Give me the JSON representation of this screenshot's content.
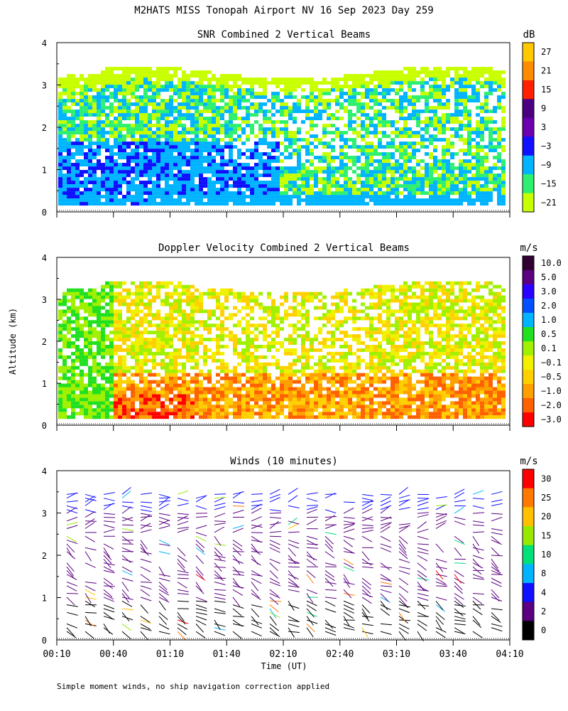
{
  "figure": {
    "title": "M2HATS MISS Tonopah Airport NV  16 Sep 2023 Day 259",
    "shared_ylabel": "Altitude (km)",
    "shared_xlabel": "Time (UT)",
    "footnote": "Simple moment winds, no ship navigation correction applied"
  },
  "chart_data": [
    {
      "type": "heatmap",
      "title": "SNR Combined 2 Vertical Beams",
      "colorbar_unit": "dB",
      "colorbar_labels": [
        "27",
        "21",
        "15",
        "9",
        "3",
        "−3",
        "−9",
        "−15",
        "−21"
      ],
      "colorbar_colors": [
        "#ffc800",
        "#ff8c00",
        "#ff2000",
        "#4b0082",
        "#6a00b0",
        "#1010ff",
        "#00b4ff",
        "#2ef070",
        "#c8ff00"
      ],
      "ylim": [
        0,
        4
      ],
      "yticks": [
        0,
        1,
        2,
        3,
        4
      ],
      "xlim": [
        "00:10",
        "04:10"
      ],
      "description_values": "approx. SNR -21 to 27 dB, data from ~0.15 to ~3.3 km"
    },
    {
      "type": "heatmap",
      "title": "Doppler Velocity Combined 2 Vertical Beams",
      "colorbar_unit": "m/s",
      "colorbar_labels": [
        "10.0",
        "5.0",
        "3.0",
        "2.0",
        "1.0",
        "0.5",
        "0.1",
        "−0.1",
        "−0.5",
        "−1.0",
        "−2.0",
        "−3.0"
      ],
      "colorbar_colors": [
        "#300030",
        "#5a0080",
        "#2a00ff",
        "#0050ff",
        "#00b4ff",
        "#20e020",
        "#a0f000",
        "#f0f000",
        "#ffd000",
        "#ffa000",
        "#ff6000",
        "#ff0000"
      ],
      "ylim": [
        0,
        4
      ],
      "yticks": [
        0,
        1,
        2,
        3,
        4
      ],
      "xlim": [
        "00:10",
        "04:10"
      ]
    },
    {
      "type": "scatter",
      "title": "Winds (10 minutes)",
      "colorbar_unit": "m/s",
      "colorbar_labels": [
        "30",
        "25",
        "20",
        "15",
        "10",
        "8",
        "4",
        "2",
        "0"
      ],
      "colorbar_colors": [
        "#ff0000",
        "#ff7800",
        "#ffc000",
        "#98e800",
        "#00e078",
        "#00b4ff",
        "#1010ff",
        "#5a0080",
        "#000000"
      ],
      "ylim": [
        0,
        4
      ],
      "yticks": [
        0,
        1,
        2,
        3,
        4
      ],
      "xticklabels": [
        "00:10",
        "00:40",
        "01:10",
        "01:40",
        "02:10",
        "02:40",
        "03:10",
        "03:40",
        "04:10"
      ]
    }
  ]
}
